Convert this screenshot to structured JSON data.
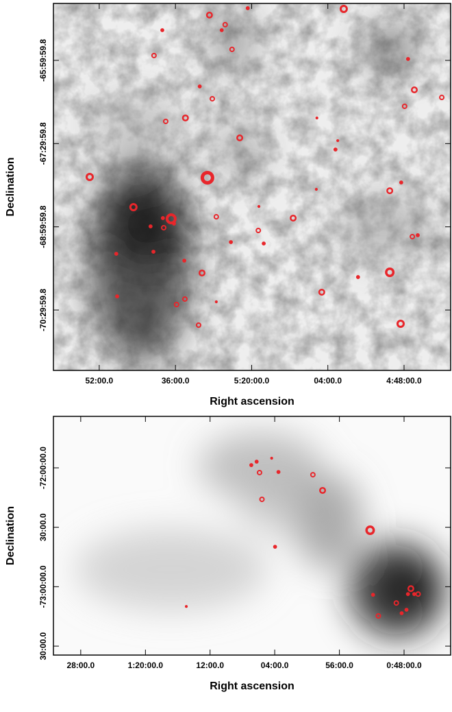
{
  "chart_data": [
    {
      "type": "scatter",
      "x_label": "Right ascension",
      "y_label": "Declination",
      "color": "#e8262b",
      "xlim": [
        6.027,
        4.637
      ],
      "ylim": [
        -71.588,
        -64.974
      ],
      "xticks": [
        {
          "value": 5.8667,
          "label": "52:00.0"
        },
        {
          "value": 5.6,
          "label": "36:00.0"
        },
        {
          "value": 5.3333,
          "label": "5:20:00.0"
        },
        {
          "value": 5.0667,
          "label": "04:00.0"
        },
        {
          "value": 4.8,
          "label": "4:48:00.0"
        }
      ],
      "yticks": [
        {
          "value": -66,
          "label": "-65:59:59.8"
        },
        {
          "value": -67.5,
          "label": "-67:29:59.8"
        },
        {
          "value": -69,
          "label": "-68:59:59.8"
        },
        {
          "value": -70.5,
          "label": "-70:29:59.8"
        }
      ],
      "x": [
        5.481,
        5.347,
        5.011,
        5.646,
        5.426,
        5.438,
        5.402,
        5.675,
        4.786,
        5.515,
        4.764,
        5.471,
        4.668,
        4.798,
        5.565,
        5.634,
        5.105,
        5.375,
        5.032,
        5.04,
        5.9,
        5.488,
        4.81,
        4.85,
        5.107,
        5.747,
        5.308,
        5.615,
        5.644,
        5.605,
        5.457,
        5.188,
        5.687,
        5.641,
        5.31,
        4.771,
        4.752,
        5.406,
        5.291,
        5.807,
        5.677,
        5.569,
        5.507,
        4.85,
        4.961,
        5.804,
        5.088,
        5.567,
        5.596,
        5.457,
        5.519,
        4.812
      ],
      "y": [
        -65.184,
        -65.06,
        -65.073,
        -65.456,
        -65.357,
        -65.456,
        -65.802,
        -65.913,
        -65.975,
        -66.47,
        -66.532,
        -66.692,
        -66.668,
        -66.828,
        -67.038,
        -67.1,
        -67.038,
        -67.397,
        -67.447,
        -67.607,
        -68.102,
        -68.115,
        -68.201,
        -68.35,
        -68.324,
        -68.646,
        -68.633,
        -68.856,
        -68.843,
        -68.942,
        -68.819,
        -68.843,
        -68.992,
        -69.016,
        -69.066,
        -69.177,
        -69.152,
        -69.276,
        -69.301,
        -69.486,
        -69.449,
        -69.61,
        -69.832,
        -69.82,
        -69.906,
        -70.253,
        -70.178,
        -70.302,
        -70.401,
        -70.352,
        -70.772,
        -70.747
      ],
      "sizes": [
        5,
        3,
        6,
        3,
        4,
        3,
        4,
        4,
        3,
        3,
        5,
        4,
        4,
        4,
        5,
        4,
        2,
        5,
        2,
        3,
        6,
        10,
        3,
        5,
        2,
        6,
        2,
        8,
        3,
        3,
        4,
        5,
        3,
        4,
        4,
        4,
        3,
        3,
        3,
        3,
        3,
        3,
        5,
        7,
        3,
        3,
        5,
        4,
        4,
        2,
        4,
        6
      ]
    },
    {
      "type": "scatter",
      "x_label": "Right ascension",
      "y_label": "Declination",
      "color": "#e8262b",
      "xlim": [
        1.523,
        0.704
      ],
      "ylim": [
        -73.575,
        -71.567
      ],
      "xticks": [
        {
          "value": 1.4667,
          "label": "28:00.0"
        },
        {
          "value": 1.3333,
          "label": "1:20:00.0"
        },
        {
          "value": 1.2,
          "label": "12:00.0"
        },
        {
          "value": 1.0667,
          "label": "04:00.0"
        },
        {
          "value": 0.9333,
          "label": "56:00.0"
        },
        {
          "value": 0.8,
          "label": "0:48:00.0"
        }
      ],
      "yticks": [
        {
          "value": -72,
          "label": "-72:00:00.0"
        },
        {
          "value": -72.5,
          "label": "30:00.0"
        },
        {
          "value": -73,
          "label": "-73:00:00.0"
        },
        {
          "value": -73.5,
          "label": "30:00.0"
        }
      ],
      "x": [
        1.115,
        1.104,
        1.073,
        1.098,
        1.059,
        0.988,
        0.968,
        1.093,
        0.87,
        1.066,
        1.249,
        0.864,
        0.786,
        0.792,
        0.779,
        0.771,
        0.816,
        0.853,
        0.805,
        0.795
      ],
      "y": [
        -71.977,
        -71.948,
        -71.919,
        -72.04,
        -72.035,
        -72.058,
        -72.19,
        -72.265,
        -72.525,
        -72.664,
        -73.166,
        -73.068,
        -73.016,
        -73.062,
        -73.062,
        -73.062,
        -73.137,
        -73.246,
        -73.223,
        -73.194
      ],
      "sizes": [
        3,
        3,
        2,
        4,
        3,
        4,
        5,
        4,
        7,
        3,
        2,
        3,
        5,
        3,
        3,
        4,
        4,
        4,
        3,
        3
      ]
    }
  ]
}
